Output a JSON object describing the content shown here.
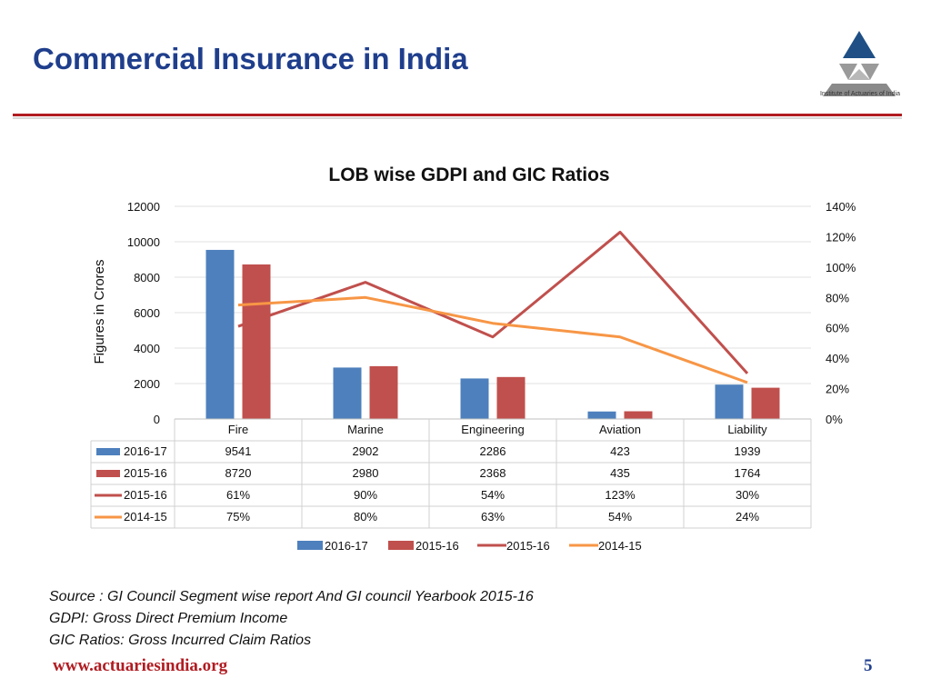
{
  "slide": {
    "title": "Commercial Insurance in India",
    "logo_text": "Institute of Actuaries of India",
    "website": "www.actuariesindia.org",
    "page_number": "5"
  },
  "notes": {
    "source": "Source : GI Council Segment wise report And GI council Yearbook 2015-16",
    "gdpi": "GDPI: Gross Direct Premium Income",
    "gic": "GIC Ratios: Gross Incurred Claim Ratios"
  },
  "colors": {
    "title": "#1f3e8c",
    "accent_red": "#b01c22",
    "bar_2016_17": "#4e80bd",
    "bar_2015_16": "#c0504d",
    "line_2015_16": "#c0504d",
    "line_2014_15": "#f79646"
  },
  "chart_data": {
    "type": "bar",
    "title": "LOB wise GDPI and GIC Ratios",
    "ylabel": "Figures in Crores",
    "ylim": [
      0,
      12000
    ],
    "y_ticks": [
      "0",
      "2000",
      "4000",
      "6000",
      "8000",
      "10000",
      "12000"
    ],
    "y2lim": [
      0,
      140
    ],
    "y2_ticks": [
      "0%",
      "20%",
      "40%",
      "60%",
      "80%",
      "100%",
      "120%",
      "140%"
    ],
    "categories": [
      "Fire",
      "Marine",
      "Engineering",
      "Aviation",
      "Liability"
    ],
    "series": [
      {
        "name": "2016-17",
        "kind": "bar",
        "axis": "primary",
        "color": "#4e80bd",
        "values": [
          9541,
          2902,
          2286,
          423,
          1939
        ],
        "labels": [
          "9541",
          "2902",
          "2286",
          "423",
          "1939"
        ]
      },
      {
        "name": "2015-16",
        "kind": "bar",
        "axis": "primary",
        "color": "#c0504d",
        "values": [
          8720,
          2980,
          2368,
          435,
          1764
        ],
        "labels": [
          "8720",
          "2980",
          "2368",
          "435",
          "1764"
        ]
      },
      {
        "name": "2015-16",
        "kind": "line",
        "axis": "secondary",
        "color": "#c0504d",
        "values": [
          61,
          90,
          54,
          123,
          30
        ],
        "labels": [
          "61%",
          "90%",
          "54%",
          "123%",
          "30%"
        ]
      },
      {
        "name": "2014-15",
        "kind": "line",
        "axis": "secondary",
        "color": "#f79646",
        "values": [
          75,
          80,
          63,
          54,
          24
        ],
        "labels": [
          "75%",
          "80%",
          "63%",
          "54%",
          "24%"
        ]
      }
    ],
    "legend": "bottom",
    "data_table": true
  }
}
